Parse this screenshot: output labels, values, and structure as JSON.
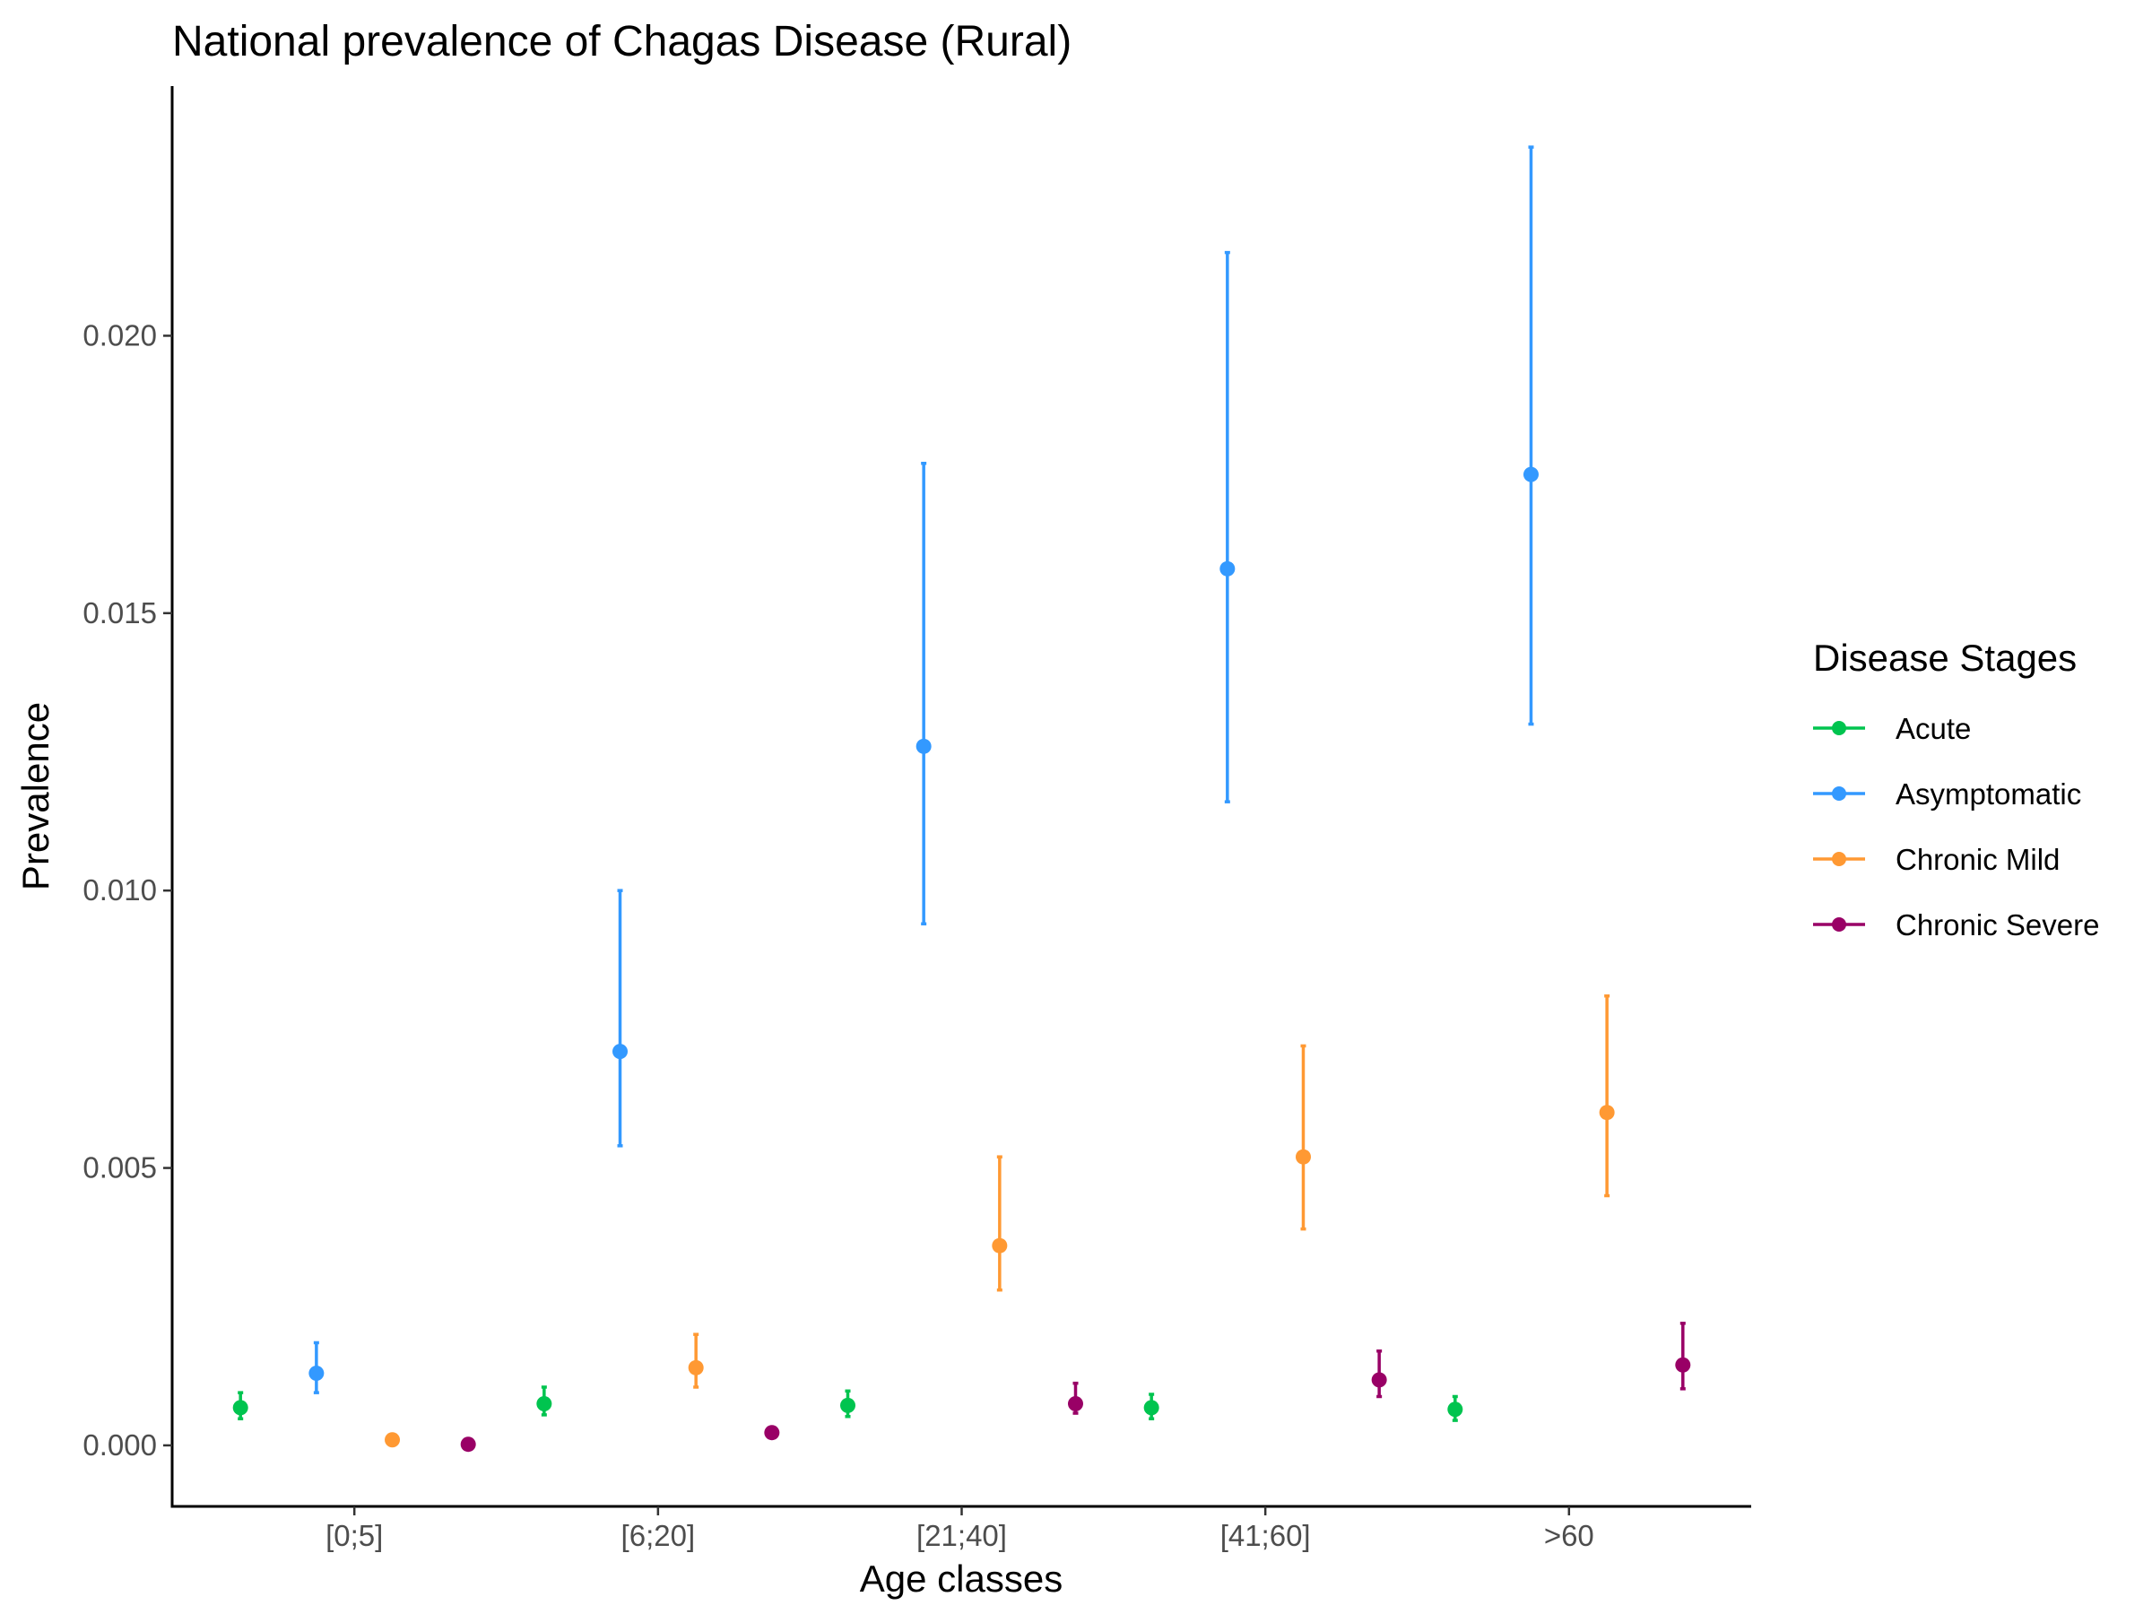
{
  "chart_data": {
    "type": "scatter",
    "title": "National prevalence of Chagas Disease (Rural)",
    "xlabel": "Age classes",
    "ylabel": "Prevalence",
    "categories": [
      "[0;5]",
      "[6;20]",
      "[21;40]",
      "[41;60]",
      ">60"
    ],
    "y_ticks": [
      "0.000",
      "0.005",
      "0.010",
      "0.015",
      "0.020"
    ],
    "ylim": [
      -0.0011,
      0.0245
    ],
    "grid": false,
    "legend": {
      "title": "Disease Stages",
      "placement": "right"
    },
    "series": [
      {
        "name": "Acute",
        "color": "#00c44f",
        "values": [
          0.00068,
          0.00075,
          0.00072,
          0.00068,
          0.00065
        ],
        "lower": [
          0.00048,
          0.00055,
          0.00052,
          0.00048,
          0.00045
        ],
        "upper": [
          0.00095,
          0.00105,
          0.00098,
          0.00092,
          0.00088
        ]
      },
      {
        "name": "Asymptomatic",
        "color": "#3399ff",
        "values": [
          0.0013,
          0.0071,
          0.0126,
          0.0158,
          0.0175
        ],
        "lower": [
          0.00095,
          0.0054,
          0.0094,
          0.0116,
          0.013
        ],
        "upper": [
          0.00185,
          0.01,
          0.0177,
          0.0215,
          0.0234
        ]
      },
      {
        "name": "Chronic Mild",
        "color": "#ff9933",
        "values": [
          0.0001,
          0.0014,
          0.0036,
          0.0052,
          0.006
        ],
        "lower": [
          0.0001,
          0.00105,
          0.0028,
          0.0039,
          0.0045
        ],
        "upper": [
          0.0001,
          0.002,
          0.0052,
          0.0072,
          0.0081
        ]
      },
      {
        "name": "Chronic Severe",
        "color": "#990066",
        "values": [
          2e-05,
          0.00023,
          0.00075,
          0.00118,
          0.00145
        ],
        "lower": [
          2e-05,
          0.00023,
          0.00058,
          0.00088,
          0.00102
        ],
        "upper": [
          2e-05,
          0.00023,
          0.00112,
          0.0017,
          0.0022
        ]
      }
    ]
  }
}
